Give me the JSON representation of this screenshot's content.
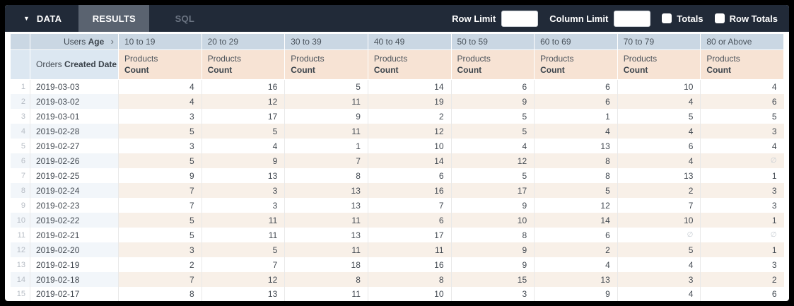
{
  "toolbar": {
    "data_label": "DATA",
    "results_label": "RESULTS",
    "sql_label": "SQL",
    "row_limit_label": "Row Limit",
    "row_limit_value": "",
    "column_limit_label": "Column Limit",
    "column_limit_value": "",
    "totals_label": "Totals",
    "totals_checked": false,
    "row_totals_label": "Row Totals",
    "row_totals_checked": false
  },
  "icons": {
    "caret_down": "▼",
    "chevron_right": "›",
    "chevron_down": "∨"
  },
  "colors": {
    "topbar_bg": "#212a38",
    "active_tab_bg": "#5a6370",
    "pivot_header_bg": "#cad7e3",
    "dimension_header_bg": "#dce7f1",
    "measure_header_bg": "#f7e3d4",
    "even_row_dimension_bg": "#f2f6fa",
    "even_row_measure_bg": "#f8f0e8"
  },
  "pivot": {
    "field_label_prefix": "Users",
    "field_label_bold": "Age",
    "columns": [
      "10 to 19",
      "20 to 29",
      "30 to 39",
      "40 to 49",
      "50 to 59",
      "60 to 69",
      "70 to 79",
      "80 or Above"
    ]
  },
  "table": {
    "dimension_label_prefix": "Orders",
    "dimension_label_bold": "Created Date",
    "measure_label_line1": "Products",
    "measure_label_line2": "Count",
    "null_symbol": "∅",
    "rows": [
      {
        "num": 1,
        "date": "2019-03-03",
        "values": [
          4,
          16,
          5,
          14,
          6,
          6,
          10,
          4
        ]
      },
      {
        "num": 2,
        "date": "2019-03-02",
        "values": [
          4,
          12,
          11,
          19,
          9,
          6,
          4,
          6
        ]
      },
      {
        "num": 3,
        "date": "2019-03-01",
        "values": [
          3,
          17,
          9,
          2,
          5,
          1,
          5,
          5
        ]
      },
      {
        "num": 4,
        "date": "2019-02-28",
        "values": [
          5,
          5,
          11,
          12,
          5,
          4,
          4,
          3
        ]
      },
      {
        "num": 5,
        "date": "2019-02-27",
        "values": [
          3,
          4,
          1,
          10,
          4,
          13,
          6,
          4
        ]
      },
      {
        "num": 6,
        "date": "2019-02-26",
        "values": [
          5,
          9,
          7,
          14,
          12,
          8,
          4,
          null
        ]
      },
      {
        "num": 7,
        "date": "2019-02-25",
        "values": [
          9,
          13,
          8,
          6,
          5,
          8,
          13,
          1
        ]
      },
      {
        "num": 8,
        "date": "2019-02-24",
        "values": [
          7,
          3,
          13,
          16,
          17,
          5,
          2,
          3
        ]
      },
      {
        "num": 9,
        "date": "2019-02-23",
        "values": [
          7,
          3,
          13,
          7,
          9,
          12,
          7,
          3
        ]
      },
      {
        "num": 10,
        "date": "2019-02-22",
        "values": [
          5,
          11,
          11,
          6,
          10,
          14,
          10,
          1
        ]
      },
      {
        "num": 11,
        "date": "2019-02-21",
        "values": [
          5,
          11,
          13,
          17,
          8,
          6,
          null,
          null
        ]
      },
      {
        "num": 12,
        "date": "2019-02-20",
        "values": [
          3,
          5,
          11,
          11,
          9,
          2,
          5,
          1
        ]
      },
      {
        "num": 13,
        "date": "2019-02-19",
        "values": [
          2,
          7,
          18,
          16,
          9,
          4,
          4,
          3
        ]
      },
      {
        "num": 14,
        "date": "2019-02-18",
        "values": [
          7,
          12,
          8,
          8,
          15,
          13,
          3,
          2
        ]
      },
      {
        "num": 15,
        "date": "2019-02-17",
        "values": [
          8,
          13,
          11,
          10,
          3,
          9,
          4,
          6
        ]
      }
    ]
  }
}
